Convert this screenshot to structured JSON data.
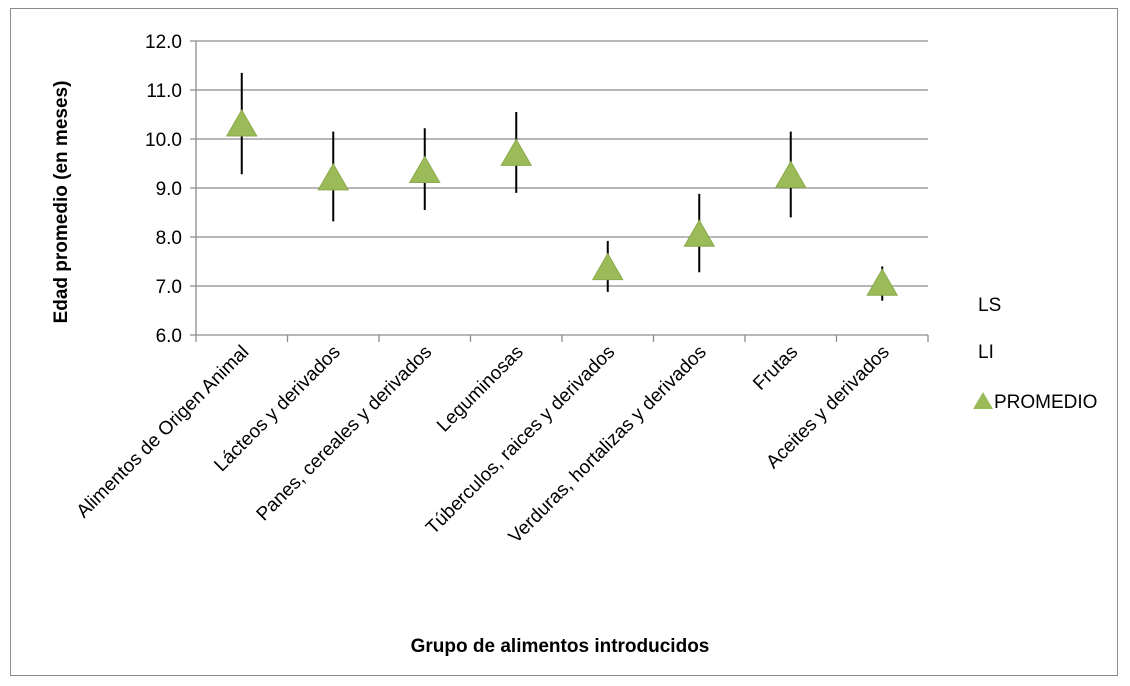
{
  "chart_data": {
    "type": "scatter",
    "title": "",
    "xlabel": "Grupo de alimentos introducidos",
    "ylabel": "Edad promedio (en meses)",
    "ylim": [
      6.0,
      12.0
    ],
    "yticks": [
      "6.0",
      "7.0",
      "8.0",
      "9.0",
      "10.0",
      "11.0",
      "12.0"
    ],
    "grid": true,
    "legend_position": "right",
    "categories": [
      "Alimentos de Origen Animal",
      "Lácteos y derivados",
      "Panes, cereales y derivados",
      "Leguminosas",
      "Túberculos, raices y derivados",
      "Verduras, hortalizas y derivados",
      "Frutas",
      "Aceites y derivados"
    ],
    "series": [
      {
        "name": "LS",
        "values": [
          11.35,
          10.15,
          10.22,
          10.55,
          7.92,
          8.88,
          10.15,
          7.4
        ]
      },
      {
        "name": "LI",
        "values": [
          9.28,
          8.32,
          8.55,
          8.9,
          6.88,
          7.28,
          8.4,
          6.7
        ]
      },
      {
        "name": "PROMEDIO",
        "values": [
          10.3,
          9.2,
          9.35,
          9.7,
          7.37,
          8.05,
          9.25,
          7.05
        ]
      }
    ],
    "colors": {
      "marker": "#9bbb59",
      "marker_edge": "#8aa94b",
      "grid": "#8c8c8c",
      "error_bar": "#000000"
    }
  }
}
